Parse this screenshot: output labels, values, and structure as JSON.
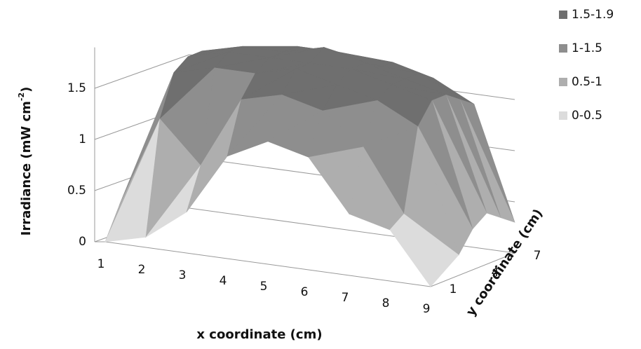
{
  "chart_data": {
    "type": "surface",
    "x_label": "x coordinate (cm)",
    "y_label": "y coordinate (cm)",
    "z_label": [
      "Irradiance (mW cm",
      "-2",
      ")"
    ],
    "x": [
      1,
      2,
      3,
      4,
      5,
      6,
      7,
      8,
      9
    ],
    "y": [
      1,
      null,
      null,
      4,
      null,
      null,
      7
    ],
    "values": [
      [
        0,
        0.1,
        0.4,
        1.0,
        1.2,
        1.1,
        0.6,
        0.5,
        0
      ],
      [
        0.3,
        1.2,
        0.8,
        1.5,
        1.6,
        1.5,
        1.2,
        0.6,
        0.1
      ],
      [
        0.5,
        1.6,
        1.7,
        1.7,
        1.8,
        1.7,
        1.6,
        1.4,
        0.2
      ],
      [
        0.6,
        1.7,
        1.8,
        1.8,
        1.8,
        1.8,
        1.7,
        1.6,
        0.4
      ],
      [
        0.6,
        1.7,
        1.8,
        1.8,
        1.9,
        1.8,
        1.7,
        1.6,
        0.5
      ],
      [
        0.5,
        1.6,
        1.7,
        1.8,
        1.8,
        1.7,
        1.7,
        1.5,
        0.4
      ],
      [
        0.3,
        1.4,
        1.6,
        1.7,
        1.7,
        1.7,
        1.6,
        1.4,
        0.3
      ]
    ],
    "zlim": [
      0,
      1.9
    ],
    "zticks": [
      0,
      0.5,
      1,
      1.5
    ],
    "grid": true,
    "legend": [
      {
        "name": "1.5-1.9",
        "color": "#6f6f6f"
      },
      {
        "name": "1-1.5",
        "color": "#8e8e8e"
      },
      {
        "name": "0.5-1",
        "color": "#aeaeae"
      },
      {
        "name": "0-0.5",
        "color": "#dcdcdc"
      }
    ],
    "legend_position": "right"
  }
}
